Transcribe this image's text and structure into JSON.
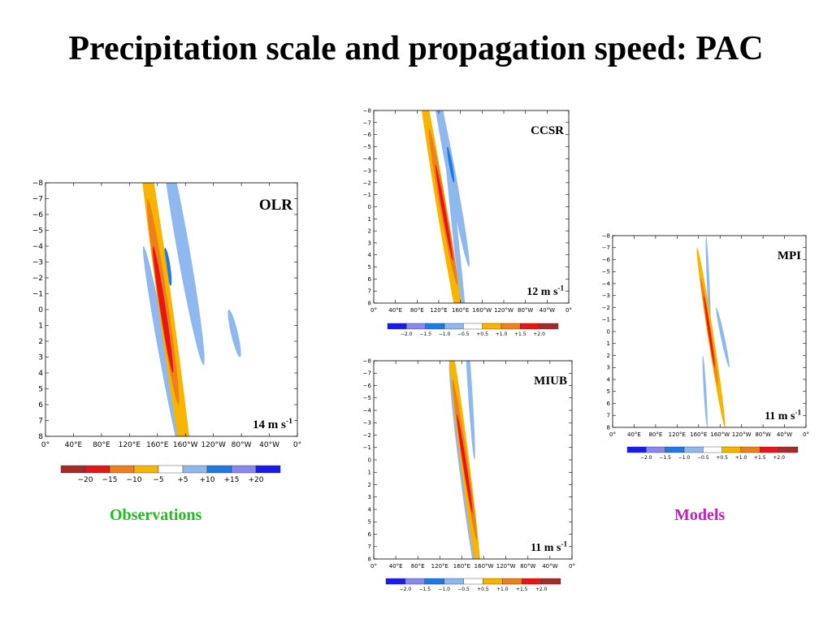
{
  "slide": {
    "title": "Precipitation scale and propagation speed: PAC",
    "caption_observations": "Observations",
    "caption_models": "Models",
    "caption_observations_color": "#22bb22",
    "caption_models_color": "#bb22bb"
  },
  "palette": {
    "neg3": "#1a1aee",
    "neg2": "#1e78e6",
    "neg1": "#8fb8ee",
    "pos1": "#f7b500",
    "pos2": "#ef7f1a",
    "pos3": "#e81515",
    "pos4": "#a52a2a",
    "neg4": "#2b2bff"
  },
  "chart_data": [
    {
      "type": "heatmap",
      "title": "OLR",
      "annotation": "14 m s",
      "annotation_sup": "-1",
      "y_ticks": [
        "−8",
        "−7",
        "−6",
        "−5",
        "−4",
        "−3",
        "−2",
        "−1",
        "0",
        "1",
        "2",
        "3",
        "4",
        "5",
        "6",
        "7",
        "8"
      ],
      "x_ticks": [
        "0°",
        "40°E",
        "80°E",
        "120°E",
        "160°E",
        "160°W",
        "120°W",
        "80°W",
        "40°W",
        "0°"
      ],
      "ylim": [
        -8,
        8
      ],
      "xlim": [
        0,
        360
      ],
      "colorbar": {
        "colors": [
          "#a52a2a",
          "#e81515",
          "#ef7f1a",
          "#f7b500",
          "#ffffff",
          "#8fb8ee",
          "#1e78e6",
          "#8888ee",
          "#1a1aee"
        ],
        "labels": [
          "−20",
          "−15",
          "−10",
          "−5",
          "+5",
          "+10",
          "+15",
          "+20"
        ]
      },
      "contours": [
        {
          "level": "neg1",
          "center": [
            196,
            -4.0
          ],
          "along": [
            30,
            7.5
          ],
          "width": 18
        },
        {
          "level": "neg1",
          "center": [
            172,
            3.5
          ],
          "along": [
            32,
            7.5
          ],
          "width": 14
        },
        {
          "level": "neg1",
          "center": [
            270,
            1.5
          ],
          "along": [
            8,
            1.5
          ],
          "width": 10
        },
        {
          "level": "neg2",
          "center": [
            175,
            -2.7
          ],
          "along": [
            4,
            1.2
          ],
          "width": 7
        },
        {
          "level": "pos1",
          "center": [
            172,
            0.0
          ],
          "along": [
            44,
            14.0
          ],
          "width": 20
        },
        {
          "level": "pos2",
          "center": [
            168,
            -0.5
          ],
          "along": [
            22,
            6.5
          ],
          "width": 13
        },
        {
          "level": "pos3",
          "center": [
            168,
            0.0
          ],
          "along": [
            14,
            4.0
          ],
          "width": 8
        }
      ]
    },
    {
      "type": "heatmap",
      "title": "CCSR",
      "annotation": "12 m s",
      "annotation_sup": "-1",
      "y_ticks": [
        "−8",
        "−7",
        "−6",
        "−5",
        "−4",
        "−3",
        "−2",
        "−1",
        "0",
        "1",
        "2",
        "3",
        "4",
        "5",
        "6",
        "7",
        "8"
      ],
      "x_ticks": [
        "0°",
        "40°E",
        "80°E",
        "120°E",
        "160°E",
        "160°W",
        "120°W",
        "80°W",
        "40°W",
        "0°"
      ],
      "ylim": [
        -8,
        8
      ],
      "xlim": [
        0,
        360
      ],
      "colorbar": {
        "colors": [
          "#1a1aee",
          "#8888ee",
          "#1e78e6",
          "#8fb8ee",
          "#ffffff",
          "#f7b500",
          "#ef7f1a",
          "#e81515",
          "#a52a2a"
        ],
        "labels": [
          "−2.0",
          "−1.5",
          "−1.0",
          "−0.5",
          "+0.5",
          "+1.0",
          "+1.5",
          "+2.0"
        ]
      },
      "contours": [
        {
          "level": "neg1",
          "center": [
            140,
            -3.5
          ],
          "along": [
            36,
            8.5
          ],
          "width": 16
        },
        {
          "level": "neg1",
          "center": [
            150,
            2.0
          ],
          "along": [
            26,
            11
          ],
          "width": 10
        },
        {
          "level": "neg2",
          "center": [
            142,
            -3.5
          ],
          "along": [
            6,
            1.5
          ],
          "width": 6
        },
        {
          "level": "pos1",
          "center": [
            125,
            0.0
          ],
          "along": [
            46,
            12.5
          ],
          "width": 18
        },
        {
          "level": "pos2",
          "center": [
            128,
            0.0
          ],
          "along": [
            26,
            6.5
          ],
          "width": 12
        },
        {
          "level": "pos3",
          "center": [
            130,
            0.5
          ],
          "along": [
            16,
            4.0
          ],
          "width": 6
        }
      ]
    },
    {
      "type": "heatmap",
      "title": "MIUB",
      "annotation": "11 m s",
      "annotation_sup": "-1",
      "y_ticks": [
        "−8",
        "−7",
        "−6",
        "−5",
        "−4",
        "−3",
        "−2",
        "−1",
        "0",
        "1",
        "2",
        "3",
        "4",
        "5",
        "6",
        "7",
        "8"
      ],
      "x_ticks": [
        "0°",
        "40°E",
        "80°E",
        "120°E",
        "160°E",
        "160°W",
        "120°W",
        "80°W",
        "40°W",
        "0°"
      ],
      "ylim": [
        -8,
        8
      ],
      "xlim": [
        0,
        360
      ],
      "colorbar": {
        "colors": [
          "#1a1aee",
          "#8888ee",
          "#1e78e6",
          "#8fb8ee",
          "#ffffff",
          "#f7b500",
          "#ef7f1a",
          "#e81515",
          "#a52a2a"
        ],
        "labels": [
          "−2.0",
          "−1.5",
          "−1.0",
          "−0.5",
          "+0.5",
          "+1.0",
          "+1.5",
          "+2.0"
        ]
      },
      "contours": [
        {
          "level": "neg1",
          "center": [
            175,
            -5.5
          ],
          "along": [
            8,
            5.5
          ],
          "width": 8
        },
        {
          "level": "neg1",
          "center": [
            168,
            2.0
          ],
          "along": [
            30,
            10
          ],
          "width": 18
        },
        {
          "level": "pos1",
          "center": [
            165,
            0.0
          ],
          "along": [
            30,
            10.5
          ],
          "width": 16
        },
        {
          "level": "pos2",
          "center": [
            165,
            0.0
          ],
          "along": [
            22,
            6.5
          ],
          "width": 10
        },
        {
          "level": "pos3",
          "center": [
            165,
            0.3
          ],
          "along": [
            14,
            4.0
          ],
          "width": 6
        }
      ]
    },
    {
      "type": "heatmap",
      "title": "MPI",
      "annotation": "11 m s",
      "annotation_sup": "-1",
      "y_ticks": [
        "−8",
        "−7",
        "−6",
        "−5",
        "−4",
        "−3",
        "−2",
        "−1",
        "0",
        "1",
        "2",
        "3",
        "4",
        "5",
        "6",
        "7",
        "8"
      ],
      "x_ticks": [
        "0°",
        "40°E",
        "80°E",
        "120°E",
        "160°E",
        "160°W",
        "120°W",
        "80°W",
        "40°W",
        "0°"
      ],
      "ylim": [
        -8,
        8
      ],
      "xlim": [
        0,
        360
      ],
      "colorbar": {
        "colors": [
          "#1a1aee",
          "#8888ee",
          "#1e78e6",
          "#8fb8ee",
          "#ffffff",
          "#f7b500",
          "#ef7f1a",
          "#e81515",
          "#a52a2a"
        ],
        "labels": [
          "−2.0",
          "−1.5",
          "−1.0",
          "−0.5",
          "+0.5",
          "+1.0",
          "+1.5",
          "+2.0"
        ]
      },
      "contours": [
        {
          "level": "neg1",
          "center": [
            178,
            -4.0
          ],
          "along": [
            4,
            4.0
          ],
          "width": 5
        },
        {
          "level": "neg1",
          "center": [
            172,
            5.0
          ],
          "along": [
            4,
            3.0
          ],
          "width": 5
        },
        {
          "level": "neg1",
          "center": [
            205,
            0.5
          ],
          "along": [
            12,
            2.5
          ],
          "width": 7
        },
        {
          "level": "pos1",
          "center": [
            183,
            0.5
          ],
          "along": [
            26,
            7.5
          ],
          "width": 11
        },
        {
          "level": "pos2",
          "center": [
            180,
            0.0
          ],
          "along": [
            16,
            4.5
          ],
          "width": 7
        },
        {
          "level": "pos3",
          "center": [
            180,
            0.0
          ],
          "along": [
            10,
            3.0
          ],
          "width": 4
        }
      ]
    }
  ]
}
